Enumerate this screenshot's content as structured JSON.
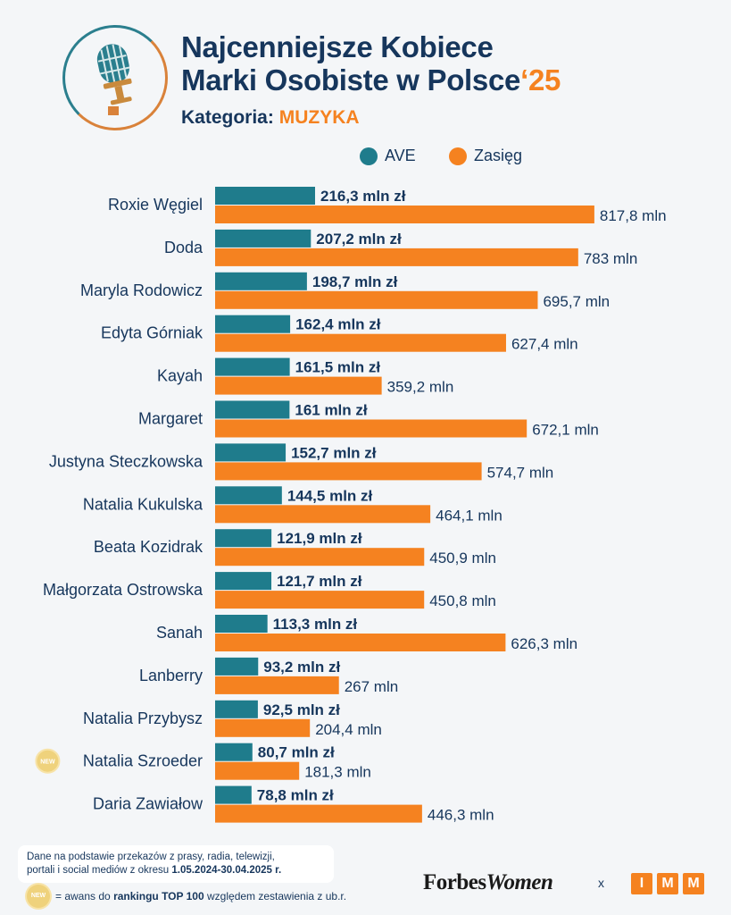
{
  "header": {
    "title_line1": "Najcenniejsze Kobiece",
    "title_line2": "Marki Osobiste w Polsce",
    "title_year": "‘25",
    "category_prefix": "Kategoria:",
    "category_value": "MUZYKA"
  },
  "legend": {
    "ave_label": "AVE",
    "reach_label": "Zasięg"
  },
  "colors": {
    "ave": "#1f7c8c",
    "reach": "#f58220",
    "text": "#16365c"
  },
  "chart_data": {
    "type": "bar",
    "orientation": "horizontal",
    "title": "Najcenniejsze Kobiece Marki Osobiste w Polsce ‘25 — Kategoria: MUZYKA",
    "categories": [
      "Roxie Węgiel",
      "Doda",
      "Maryla Rodowicz",
      "Edyta Górniak",
      "Kayah",
      "Margaret",
      "Justyna Steczkowska",
      "Natalia Kukulska",
      "Beata Kozidrak",
      "Małgorzata Ostrowska",
      "Sanah",
      "Lanberry",
      "Natalia Przybysz",
      "Natalia Szroeder",
      "Daria Zawiałow"
    ],
    "new_flags": [
      false,
      false,
      false,
      false,
      false,
      false,
      false,
      false,
      false,
      false,
      false,
      false,
      false,
      true,
      false
    ],
    "series": [
      {
        "name": "AVE",
        "unit": "mln zł",
        "values": [
          216.3,
          207.2,
          198.7,
          162.4,
          161.5,
          161,
          152.7,
          144.5,
          121.9,
          121.7,
          113.3,
          93.2,
          92.5,
          80.7,
          78.8
        ],
        "labels": [
          "216,3 mln zł",
          "207,2 mln zł",
          "198,7 mln zł",
          "162,4 mln zł",
          "161,5 mln zł",
          "161 mln zł",
          "152,7 mln zł",
          "144,5 mln zł",
          "121,9 mln zł",
          "121,7 mln zł",
          "113,3 mln zł",
          "93,2 mln zł",
          "92,5 mln zł",
          "80,7 mln zł",
          "78,8 mln zł"
        ]
      },
      {
        "name": "Zasięg",
        "unit": "mln",
        "values": [
          817.8,
          783,
          695.7,
          627.4,
          359.2,
          672.1,
          574.7,
          464.1,
          450.9,
          450.8,
          626.3,
          267,
          204.4,
          181.3,
          446.3
        ],
        "labels": [
          "817,8 mln",
          "783 mln",
          "695,7 mln",
          "627,4 mln",
          "359,2 mln",
          "672,1 mln",
          "574,7 mln",
          "464,1 mln",
          "450,9 mln",
          "450,8 mln",
          "626,3 mln",
          "267 mln",
          "204,4 mln",
          "181,3 mln",
          "446,3 mln"
        ]
      }
    ]
  },
  "footer": {
    "note_line1": "Dane na podstawie przekazów z prasy, radia, telewizji,",
    "note_line2": "portali i social mediów z okresu",
    "note_period": "1.05.2024-30.04.2025 r.",
    "new_badge_text": "NEW",
    "new_legend_prefix": "= awans do",
    "new_legend_bold": "rankingu TOP 100",
    "new_legend_suffix": "względem zestawienia z ub.r.",
    "brand_forbes": "Forbes",
    "brand_women": "Women",
    "times": "x",
    "imm_letters": [
      "I",
      "M",
      "M"
    ]
  }
}
